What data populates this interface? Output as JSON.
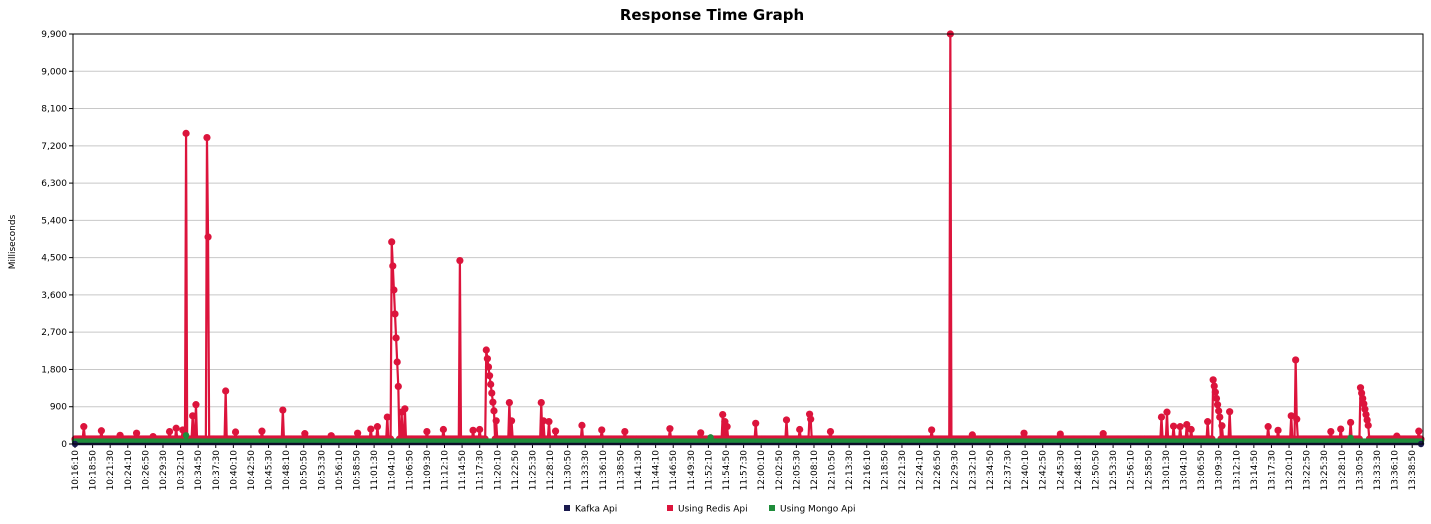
{
  "chart_data": {
    "type": "line",
    "title": "Response Time Graph",
    "xlabel": "",
    "ylabel": "Milliseconds",
    "ylim": [
      0,
      9900
    ],
    "yticks": [
      0,
      900,
      1800,
      2700,
      3600,
      4500,
      5400,
      6300,
      7200,
      8100,
      9000,
      9900
    ],
    "ytick_labels": [
      "0",
      "900",
      "1,800",
      "2,700",
      "3,600",
      "4,500",
      "5,400",
      "6,300",
      "7,200",
      "8,100",
      "9,000",
      "9,900"
    ],
    "x_tick_labels": [
      "10:16:10",
      "10:18:50",
      "10:21:30",
      "10:24:10",
      "10:26:50",
      "10:29:30",
      "10:32:10",
      "10:34:50",
      "10:37:30",
      "10:40:10",
      "10:42:50",
      "10:45:30",
      "10:48:10",
      "10:50:50",
      "10:53:30",
      "10:56:10",
      "10:58:50",
      "11:01:30",
      "11:04:10",
      "11:06:50",
      "11:09:30",
      "11:12:10",
      "11:14:50",
      "11:17:30",
      "11:20:10",
      "11:22:50",
      "11:25:30",
      "11:28:10",
      "11:30:50",
      "11:33:30",
      "11:36:10",
      "11:38:50",
      "11:41:30",
      "11:44:10",
      "11:46:50",
      "11:49:30",
      "11:52:10",
      "11:54:50",
      "11:57:30",
      "12:00:10",
      "12:02:50",
      "12:05:30",
      "12:08:10",
      "12:10:50",
      "12:13:30",
      "12:16:10",
      "12:18:50",
      "12:21:30",
      "12:24:10",
      "12:26:50",
      "12:29:30",
      "12:32:10",
      "12:34:50",
      "12:37:30",
      "12:40:10",
      "12:42:50",
      "12:45:30",
      "12:48:10",
      "12:50:50",
      "12:53:30",
      "12:56:10",
      "12:58:50",
      "13:01:30",
      "13:04:10",
      "13:06:50",
      "13:09:30",
      "13:12:10",
      "13:14:50",
      "13:17:30",
      "13:20:10",
      "13:22:50",
      "13:25:30",
      "13:28:10",
      "13:30:50",
      "13:33:30",
      "13:36:10",
      "13:38:50"
    ],
    "legend_position": "bottom-center",
    "grid": true,
    "series": [
      {
        "name": "Kafka Api",
        "color": "#1a1a4e",
        "points": [
          [
            "10:16:10",
            0
          ],
          [
            "13:40:10",
            0
          ]
        ]
      },
      {
        "name": "Using Redis Api",
        "color": "#dc143c",
        "baseline": 120,
        "points": [
          [
            "10:17:30",
            420
          ],
          [
            "10:20:10",
            320
          ],
          [
            "10:23:00",
            210
          ],
          [
            "10:25:30",
            260
          ],
          [
            "10:28:00",
            180
          ],
          [
            "10:30:30",
            300
          ],
          [
            "10:31:30",
            380
          ],
          [
            "10:32:30",
            340
          ],
          [
            "10:33:00",
            7500
          ],
          [
            "10:34:00",
            680
          ],
          [
            "10:34:30",
            950
          ],
          [
            "10:36:10",
            7400
          ],
          [
            "10:36:20",
            5000
          ],
          [
            "10:39:00",
            1280
          ],
          [
            "10:40:30",
            290
          ],
          [
            "10:44:30",
            310
          ],
          [
            "10:47:40",
            820
          ],
          [
            "10:51:00",
            250
          ],
          [
            "10:55:00",
            200
          ],
          [
            "10:59:00",
            260
          ],
          [
            "11:01:00",
            360
          ],
          [
            "11:02:00",
            420
          ],
          [
            "11:03:30",
            650
          ],
          [
            "11:04:10",
            4880
          ],
          [
            "11:04:20",
            4300
          ],
          [
            "11:04:30",
            3720
          ],
          [
            "11:04:40",
            3140
          ],
          [
            "11:04:50",
            2560
          ],
          [
            "11:05:00",
            1980
          ],
          [
            "11:05:10",
            1390
          ],
          [
            "11:05:40",
            770
          ],
          [
            "11:06:10",
            850
          ],
          [
            "11:09:30",
            300
          ],
          [
            "11:12:00",
            350
          ],
          [
            "11:14:30",
            4430
          ],
          [
            "11:16:30",
            330
          ],
          [
            "11:17:30",
            350
          ],
          [
            "11:18:30",
            2270
          ],
          [
            "11:18:40",
            2060
          ],
          [
            "11:18:50",
            1860
          ],
          [
            "11:19:00",
            1650
          ],
          [
            "11:19:10",
            1440
          ],
          [
            "11:19:20",
            1230
          ],
          [
            "11:19:30",
            1010
          ],
          [
            "11:19:40",
            800
          ],
          [
            "11:20:00",
            560
          ],
          [
            "11:22:00",
            1000
          ],
          [
            "11:22:20",
            560
          ],
          [
            "11:26:50",
            1000
          ],
          [
            "11:27:10",
            560
          ],
          [
            "11:28:00",
            540
          ],
          [
            "11:29:00",
            310
          ],
          [
            "11:33:00",
            450
          ],
          [
            "11:36:00",
            340
          ],
          [
            "11:39:30",
            300
          ],
          [
            "11:46:20",
            370
          ],
          [
            "11:51:00",
            270
          ],
          [
            "11:54:20",
            710
          ],
          [
            "11:54:40",
            540
          ],
          [
            "11:55:00",
            420
          ],
          [
            "11:59:20",
            500
          ],
          [
            "12:04:00",
            580
          ],
          [
            "12:06:00",
            350
          ],
          [
            "12:07:30",
            720
          ],
          [
            "12:07:40",
            600
          ],
          [
            "12:10:40",
            300
          ],
          [
            "12:26:00",
            340
          ],
          [
            "12:28:50",
            9900
          ],
          [
            "12:32:10",
            220
          ],
          [
            "12:40:00",
            260
          ],
          [
            "12:45:30",
            240
          ],
          [
            "12:52:00",
            250
          ],
          [
            "13:00:50",
            650
          ],
          [
            "13:01:40",
            770
          ],
          [
            "13:02:40",
            430
          ],
          [
            "13:03:40",
            420
          ],
          [
            "13:04:40",
            470
          ],
          [
            "13:05:20",
            350
          ],
          [
            "13:07:50",
            540
          ],
          [
            "13:08:40",
            1550
          ],
          [
            "13:08:50",
            1400
          ],
          [
            "13:09:00",
            1250
          ],
          [
            "13:09:10",
            1100
          ],
          [
            "13:09:20",
            950
          ],
          [
            "13:09:30",
            800
          ],
          [
            "13:09:40",
            650
          ],
          [
            "13:10:00",
            440
          ],
          [
            "13:11:10",
            780
          ],
          [
            "13:17:00",
            420
          ],
          [
            "13:18:30",
            330
          ],
          [
            "13:20:30",
            680
          ],
          [
            "13:21:10",
            2030
          ],
          [
            "13:21:20",
            600
          ],
          [
            "13:26:30",
            300
          ],
          [
            "13:28:00",
            360
          ],
          [
            "13:29:30",
            520
          ],
          [
            "13:31:00",
            1360
          ],
          [
            "13:31:10",
            1230
          ],
          [
            "13:31:20",
            1100
          ],
          [
            "13:31:30",
            970
          ],
          [
            "13:31:40",
            840
          ],
          [
            "13:31:50",
            710
          ],
          [
            "13:32:00",
            580
          ],
          [
            "13:32:10",
            450
          ],
          [
            "13:36:30",
            190
          ],
          [
            "13:39:50",
            310
          ]
        ]
      },
      {
        "name": "Using Mongo Api",
        "color": "#1e8c3a",
        "baseline": 60,
        "points": [
          [
            "10:33:00",
            210
          ],
          [
            "11:52:30",
            160
          ],
          [
            "13:29:30",
            150
          ]
        ]
      }
    ]
  }
}
